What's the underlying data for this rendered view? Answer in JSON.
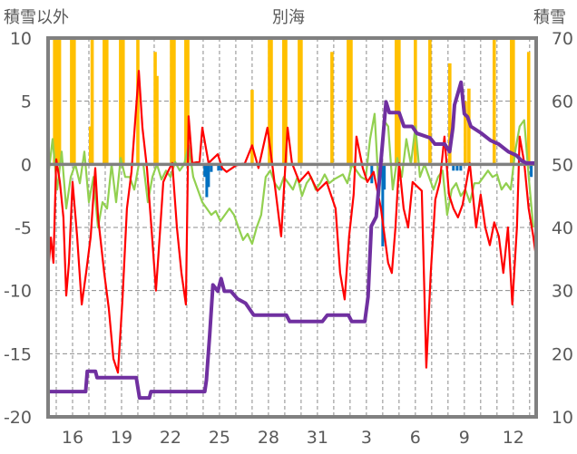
{
  "chart_data": {
    "type": "bar+line",
    "title": "別海",
    "ylabel_left": "積雪以外",
    "ylabel_right": "積雪",
    "ylim_left": [
      -20,
      10
    ],
    "ylim_right": [
      10,
      70
    ],
    "yticks_left": [
      10,
      5,
      0,
      -5,
      -10,
      -15,
      -20
    ],
    "yticks_right": [
      70,
      60,
      50,
      40,
      30,
      20,
      10
    ],
    "xlim_day": [
      14.5,
      44.4
    ],
    "xticks": [
      {
        "day": 16,
        "label": "16"
      },
      {
        "day": 19,
        "label": "19"
      },
      {
        "day": 22,
        "label": "22"
      },
      {
        "day": 25,
        "label": "25"
      },
      {
        "day": 28,
        "label": "28"
      },
      {
        "day": 31,
        "label": "31"
      },
      {
        "day": 34,
        "label": "3"
      },
      {
        "day": 37,
        "label": "6"
      },
      {
        "day": 40,
        "label": "9"
      },
      {
        "day": 43,
        "label": "12"
      }
    ],
    "grid": true,
    "colors": {
      "yellow": "#FFC000",
      "blue": "#0070C0",
      "red": "#FF0000",
      "green": "#92D050",
      "purple": "#7030A0",
      "axis": "#808080"
    },
    "bars_yellow": [
      [
        14.9,
        10
      ],
      [
        15.06,
        10
      ],
      [
        15.2,
        10
      ],
      [
        15.94,
        10
      ],
      [
        16.1,
        10
      ],
      [
        17.1,
        3
      ],
      [
        17.2,
        10
      ],
      [
        17.94,
        10
      ],
      [
        18.1,
        10
      ],
      [
        18.94,
        10
      ],
      [
        19.1,
        10
      ],
      [
        20.0,
        10
      ],
      [
        21.06,
        8.9
      ],
      [
        21.17,
        7
      ],
      [
        22.06,
        10
      ],
      [
        22.22,
        10
      ],
      [
        22.94,
        10
      ],
      [
        23.06,
        10
      ],
      [
        27.0,
        5.9
      ],
      [
        28.06,
        10
      ],
      [
        28.17,
        10
      ],
      [
        28.94,
        10
      ],
      [
        29.06,
        10
      ],
      [
        29.89,
        10
      ],
      [
        30.0,
        10
      ],
      [
        31.89,
        8.9
      ],
      [
        32.89,
        10
      ],
      [
        33.06,
        10
      ],
      [
        35.83,
        10
      ],
      [
        36.0,
        10
      ],
      [
        37.0,
        10
      ],
      [
        37.89,
        10
      ],
      [
        39.11,
        8
      ],
      [
        40.06,
        5
      ],
      [
        40.28,
        6
      ],
      [
        41.83,
        10
      ],
      [
        42.89,
        10
      ],
      [
        43.0,
        10
      ],
      [
        43.94,
        8.9
      ]
    ],
    "bars_blue": [
      [
        24.1,
        -1
      ],
      [
        24.22,
        -2.6
      ],
      [
        24.33,
        -1.8
      ],
      [
        24.5,
        -0.6
      ],
      [
        24.94,
        -0.5
      ],
      [
        25.1,
        -0.5
      ],
      [
        34.33,
        -1.5
      ],
      [
        35.0,
        -6.5
      ],
      [
        35.1,
        -2
      ],
      [
        39.33,
        -0.5
      ],
      [
        39.56,
        -0.5
      ],
      [
        39.78,
        -0.5
      ],
      [
        44.1,
        -1
      ]
    ],
    "red_line": [
      [
        14.5,
        -8.6
      ],
      [
        14.67,
        -5.8
      ],
      [
        14.83,
        -7.8
      ],
      [
        15.0,
        0.4
      ],
      [
        15.22,
        -1.4
      ],
      [
        15.44,
        -4.2
      ],
      [
        15.61,
        -10.4
      ],
      [
        15.78,
        -7.8
      ],
      [
        16.0,
        -1.4
      ],
      [
        16.28,
        -5.7
      ],
      [
        16.56,
        -11.1
      ],
      [
        16.83,
        -8.6
      ],
      [
        17.11,
        -5.7
      ],
      [
        17.39,
        -0.3
      ],
      [
        17.56,
        -4.2
      ],
      [
        17.94,
        -8.6
      ],
      [
        18.22,
        -11.4
      ],
      [
        18.5,
        -15.4
      ],
      [
        18.78,
        -16.5
      ],
      [
        19.06,
        -10.7
      ],
      [
        19.33,
        -3.5
      ],
      [
        19.61,
        -0.6
      ],
      [
        19.89,
        4.4
      ],
      [
        20.06,
        7.4
      ],
      [
        20.28,
        2.9
      ],
      [
        20.56,
        -0.3
      ],
      [
        20.83,
        -5.0
      ],
      [
        21.11,
        -10.0
      ],
      [
        21.28,
        -6.8
      ],
      [
        21.56,
        -1.4
      ],
      [
        21.83,
        -0.6
      ],
      [
        22.11,
        0.1
      ],
      [
        22.39,
        -5.0
      ],
      [
        22.67,
        -8.6
      ],
      [
        22.94,
        -11.1
      ],
      [
        23.11,
        3.8
      ],
      [
        23.33,
        0.1
      ],
      [
        23.78,
        0.2
      ],
      [
        23.95,
        2.9
      ],
      [
        24.33,
        0.1
      ],
      [
        24.89,
        0.8
      ],
      [
        25.17,
        -0.3
      ],
      [
        25.44,
        -0.6
      ],
      [
        26.0,
        -0.1
      ],
      [
        26.56,
        0.1
      ],
      [
        27.0,
        1.5
      ],
      [
        27.39,
        -0.3
      ],
      [
        27.94,
        2.9
      ],
      [
        28.22,
        0.1
      ],
      [
        28.5,
        -2.8
      ],
      [
        28.78,
        -5.7
      ],
      [
        29.17,
        2.9
      ],
      [
        29.44,
        0.1
      ],
      [
        29.89,
        -1.4
      ],
      [
        30.44,
        -0.6
      ],
      [
        31.0,
        -2.1
      ],
      [
        31.56,
        -1.4
      ],
      [
        32.11,
        -3.5
      ],
      [
        32.39,
        -8.6
      ],
      [
        32.67,
        -10.7
      ],
      [
        32.94,
        -5.7
      ],
      [
        33.22,
        -2.4
      ],
      [
        33.39,
        2.2
      ],
      [
        33.78,
        -0.3
      ],
      [
        34.06,
        -1.4
      ],
      [
        34.44,
        -0.6
      ],
      [
        34.89,
        -3.5
      ],
      [
        35.33,
        -7.8
      ],
      [
        35.56,
        -8.6
      ],
      [
        35.78,
        -5.0
      ],
      [
        36.0,
        0.1
      ],
      [
        36.28,
        -3.5
      ],
      [
        36.56,
        -5.0
      ],
      [
        36.83,
        -1.4
      ],
      [
        37.39,
        -2.1
      ],
      [
        37.67,
        -16.1
      ],
      [
        37.94,
        -8.6
      ],
      [
        38.22,
        -2.8
      ],
      [
        38.5,
        -1.4
      ],
      [
        38.78,
        2.2
      ],
      [
        39.06,
        -2.4
      ],
      [
        39.33,
        -3.5
      ],
      [
        39.61,
        -4.2
      ],
      [
        39.89,
        -3.2
      ],
      [
        40.33,
        0.1
      ],
      [
        40.72,
        -5.0
      ],
      [
        41.0,
        -2.4
      ],
      [
        41.28,
        -5.0
      ],
      [
        41.56,
        -6.4
      ],
      [
        41.83,
        -4.6
      ],
      [
        42.11,
        -5.7
      ],
      [
        42.39,
        -8.6
      ],
      [
        42.67,
        -5.0
      ],
      [
        42.94,
        -11.1
      ],
      [
        43.22,
        -5.0
      ],
      [
        43.39,
        2.2
      ],
      [
        43.67,
        0.1
      ],
      [
        43.94,
        -3.5
      ],
      [
        44.22,
        -5.7
      ],
      [
        44.39,
        -7.3
      ]
    ],
    "green_line": {
      "start_day": 14.5,
      "step_day": 0.2778,
      "values": [
        -1,
        2,
        -2,
        1,
        -3.5,
        -1,
        0,
        -1.5,
        1,
        -3,
        -1,
        -5,
        -3,
        -3.5,
        0,
        -3,
        0.5,
        -1,
        -1,
        -2,
        0,
        0,
        -3,
        -1,
        0,
        -1.2,
        -0.5,
        -1,
        0.2,
        -0.5,
        0,
        1.5,
        -1,
        -2,
        -3,
        -3.5,
        -4,
        -3.7,
        -4.5,
        -4,
        -3.5,
        -4,
        -5,
        -6,
        -5.5,
        -6.3,
        -5,
        -4,
        -1,
        -0.5,
        -1.5,
        -2,
        -1,
        -1.5,
        -2,
        -1,
        -2.5,
        -1.5,
        -1,
        -2,
        -1.5,
        -0.8,
        -1.5,
        -1.2,
        -1,
        -0.8,
        -1.5,
        0,
        -0.5,
        -1,
        -1.2,
        2,
        4,
        -2.5,
        3.5,
        3,
        -2,
        0.5,
        -1,
        2,
        0,
        3,
        -1,
        0,
        -1,
        -2,
        -1,
        -0.5,
        -4,
        -2,
        -1.5,
        -2.5,
        -2,
        -3,
        -1.5,
        -1.5,
        -1,
        -0.5,
        -1,
        -0.8,
        -2,
        -1.5,
        -2,
        1,
        3,
        3.5,
        -1,
        -5,
        -1.5
      ]
    },
    "purple_line_right_axis": [
      [
        14.5,
        14
      ],
      [
        16.8,
        14
      ],
      [
        16.9,
        17.2
      ],
      [
        17.4,
        17.2
      ],
      [
        17.5,
        16.2
      ],
      [
        19.9,
        16.2
      ],
      [
        20.1,
        13
      ],
      [
        20.7,
        13
      ],
      [
        20.8,
        14
      ],
      [
        24.1,
        14
      ],
      [
        24.2,
        15.8
      ],
      [
        24.4,
        22.9
      ],
      [
        24.6,
        30.9
      ],
      [
        24.9,
        29.9
      ],
      [
        25.1,
        31.9
      ],
      [
        25.3,
        29.9
      ],
      [
        25.7,
        29.9
      ],
      [
        26.1,
        28.7
      ],
      [
        26.6,
        28
      ],
      [
        27.1,
        26.1
      ],
      [
        29.1,
        26.1
      ],
      [
        29.3,
        25.1
      ],
      [
        31.3,
        25.1
      ],
      [
        31.6,
        26.1
      ],
      [
        32.9,
        26.1
      ],
      [
        33.1,
        25.1
      ],
      [
        33.9,
        25.1
      ],
      [
        34.1,
        29
      ],
      [
        34.3,
        40.2
      ],
      [
        34.6,
        41.7
      ],
      [
        35.2,
        59.9
      ],
      [
        35.4,
        58.2
      ],
      [
        36,
        58.2
      ],
      [
        36.3,
        56
      ],
      [
        36.8,
        56
      ],
      [
        37.1,
        54.9
      ],
      [
        37.9,
        54.2
      ],
      [
        38.2,
        53.2
      ],
      [
        38.8,
        53.2
      ],
      [
        39.1,
        52
      ],
      [
        39.3,
        55.8
      ],
      [
        39.4,
        59.4
      ],
      [
        39.8,
        63
      ],
      [
        40,
        58
      ],
      [
        40.2,
        57.5
      ],
      [
        40.4,
        56
      ],
      [
        41,
        55
      ],
      [
        41.6,
        53.8
      ],
      [
        42.1,
        53.2
      ],
      [
        42.7,
        52
      ],
      [
        43.2,
        51.4
      ],
      [
        43.5,
        50.6
      ],
      [
        43.8,
        50.2
      ],
      [
        44.4,
        50.2
      ]
    ]
  }
}
